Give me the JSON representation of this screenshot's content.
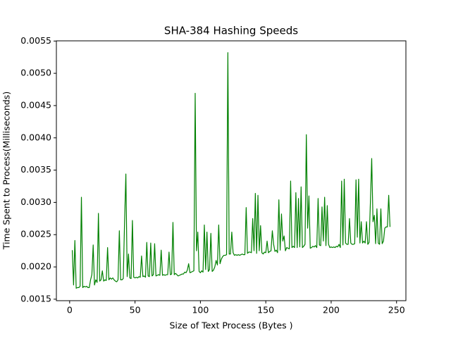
{
  "chart_data": {
    "type": "line",
    "title": "SHA-384 Hashing Speeds",
    "x_label": "Size of Text Process (Bytes )",
    "y_label": "Time Spent to Process(Milliseconds)",
    "xlim": [
      -10.15,
      257.15
    ],
    "xticks": [
      0,
      50,
      100,
      150,
      200,
      250
    ],
    "ylim": [
      0.001477,
      0.005503
    ],
    "yticks": [
      0.0015,
      {
        "value": 0.002,
        "label": "0.0020"
      },
      0.0025,
      {
        "value": 0.003,
        "label": "0.0030"
      },
      0.0035,
      {
        "value": 0.004,
        "label": "0.0040"
      },
      0.0045,
      {
        "value": 0.005,
        "label": "0.0050"
      },
      0.0055
    ],
    "x": [
      2,
      3,
      4,
      5,
      6,
      7,
      8,
      9,
      10,
      11,
      12,
      13,
      14,
      15,
      16,
      17,
      18,
      19,
      20,
      21,
      22,
      23,
      24,
      25,
      26,
      27,
      28,
      29,
      30,
      31,
      32,
      33,
      34,
      35,
      36,
      37,
      38,
      39,
      40,
      41,
      42,
      43,
      44,
      45,
      46,
      47,
      48,
      49,
      50,
      51,
      52,
      53,
      54,
      55,
      56,
      57,
      58,
      59,
      60,
      61,
      62,
      63,
      64,
      65,
      66,
      67,
      68,
      69,
      70,
      71,
      72,
      73,
      74,
      75,
      76,
      77,
      78,
      79,
      80,
      81,
      82,
      83,
      84,
      85,
      86,
      87,
      88,
      89,
      90,
      91,
      92,
      93,
      94,
      95,
      96,
      97,
      98,
      99,
      100,
      101,
      102,
      103,
      104,
      105,
      106,
      107,
      108,
      109,
      110,
      111,
      112,
      113,
      114,
      115,
      116,
      117,
      118,
      119,
      120,
      121,
      122,
      123,
      124,
      125,
      126,
      127,
      128,
      129,
      130,
      131,
      132,
      133,
      134,
      135,
      136,
      137,
      138,
      139,
      140,
      141,
      142,
      143,
      144,
      145,
      146,
      147,
      148,
      149,
      150,
      151,
      152,
      153,
      154,
      155,
      156,
      157,
      158,
      159,
      160,
      161,
      162,
      163,
      164,
      165,
      166,
      167,
      168,
      169,
      170,
      171,
      172,
      173,
      174,
      175,
      176,
      177,
      178,
      179,
      180,
      181,
      182,
      183,
      184,
      185,
      186,
      187,
      188,
      189,
      190,
      191,
      192,
      193,
      194,
      195,
      196,
      197,
      198,
      199,
      200,
      201,
      202,
      203,
      204,
      205,
      206,
      207,
      208,
      209,
      210,
      211,
      212,
      213,
      214,
      215,
      216,
      217,
      218,
      219,
      220,
      221,
      222,
      223,
      224,
      225,
      226,
      227,
      228,
      229,
      230,
      231,
      232,
      233,
      234,
      235,
      236,
      237,
      238,
      239,
      240,
      241,
      242,
      243,
      244,
      245
    ],
    "series": [
      {
        "color": "#008000",
        "values": [
          0.00226,
          0.00172,
          0.00241,
          0.00167,
          0.00168,
          0.00168,
          0.0017,
          0.00308,
          0.00168,
          0.0017,
          0.00169,
          0.0017,
          0.00168,
          0.00168,
          0.0018,
          0.00188,
          0.00234,
          0.00172,
          0.0018,
          0.00176,
          0.00283,
          0.00178,
          0.0018,
          0.00194,
          0.00178,
          0.0018,
          0.00179,
          0.0023,
          0.0018,
          0.00183,
          0.00181,
          0.00183,
          0.0018,
          0.00178,
          0.00177,
          0.0018,
          0.00256,
          0.0018,
          0.0018,
          0.00182,
          0.0027,
          0.00344,
          0.00185,
          0.0022,
          0.00183,
          0.00182,
          0.00272,
          0.00184,
          0.00183,
          0.00184,
          0.00183,
          0.00185,
          0.00184,
          0.00217,
          0.00185,
          0.00186,
          0.00184,
          0.00238,
          0.00186,
          0.00185,
          0.00237,
          0.00186,
          0.00188,
          0.00236,
          0.00186,
          0.00187,
          0.00188,
          0.00187,
          0.00226,
          0.00187,
          0.00188,
          0.00187,
          0.00188,
          0.00188,
          0.00223,
          0.00188,
          0.00189,
          0.00269,
          0.00188,
          0.0019,
          0.00188,
          0.00186,
          0.00187,
          0.00188,
          0.00189,
          0.00189,
          0.00192,
          0.00191,
          0.00195,
          0.00205,
          0.00191,
          0.00192,
          0.00193,
          0.00194,
          0.00469,
          0.00225,
          0.00254,
          0.00193,
          0.00191,
          0.00194,
          0.00192,
          0.00265,
          0.00196,
          0.00254,
          0.00193,
          0.00196,
          0.00252,
          0.00193,
          0.00195,
          0.002,
          0.0021,
          0.00203,
          0.00265,
          0.00205,
          0.00212,
          0.00216,
          0.00218,
          0.00218,
          0.00219,
          0.00532,
          0.0022,
          0.0022,
          0.00254,
          0.00222,
          0.00218,
          0.00219,
          0.00218,
          0.00219,
          0.00218,
          0.00219,
          0.0022,
          0.00219,
          0.00219,
          0.00292,
          0.00221,
          0.00223,
          0.00223,
          0.00222,
          0.00275,
          0.00225,
          0.00314,
          0.00221,
          0.00311,
          0.00225,
          0.00264,
          0.00222,
          0.0022,
          0.00223,
          0.00222,
          0.0024,
          0.00222,
          0.00224,
          0.00225,
          0.00256,
          0.00235,
          0.00224,
          0.00226,
          0.00222,
          0.00304,
          0.00226,
          0.00282,
          0.0024,
          0.00248,
          0.00225,
          0.0023,
          0.00229,
          0.00228,
          0.00333,
          0.0023,
          0.00232,
          0.0023,
          0.00315,
          0.0023,
          0.00306,
          0.00231,
          0.00324,
          0.0023,
          0.00232,
          0.00235,
          0.00405,
          0.0026,
          0.0031,
          0.00229,
          0.0023,
          0.00232,
          0.00231,
          0.00233,
          0.0023,
          0.00306,
          0.00234,
          0.00233,
          0.00293,
          0.0024,
          0.00308,
          0.00233,
          0.00295,
          0.00235,
          0.0023,
          0.00231,
          0.0023,
          0.00231,
          0.0023,
          0.00232,
          0.00231,
          0.00235,
          0.0023,
          0.00333,
          0.00234,
          0.00336,
          0.00237,
          0.00235,
          0.00235,
          0.00275,
          0.00237,
          0.00235,
          0.00235,
          0.00236,
          0.00335,
          0.00246,
          0.00336,
          0.00237,
          0.0027,
          0.00237,
          0.0024,
          0.00237,
          0.0027,
          0.00235,
          0.00238,
          0.003,
          0.00368,
          0.0027,
          0.0028,
          0.00236,
          0.0029,
          0.00237,
          0.00235,
          0.0029,
          0.00236,
          0.0024,
          0.0026,
          0.00262,
          0.00262,
          0.00311,
          0.00262
        ]
      }
    ]
  }
}
